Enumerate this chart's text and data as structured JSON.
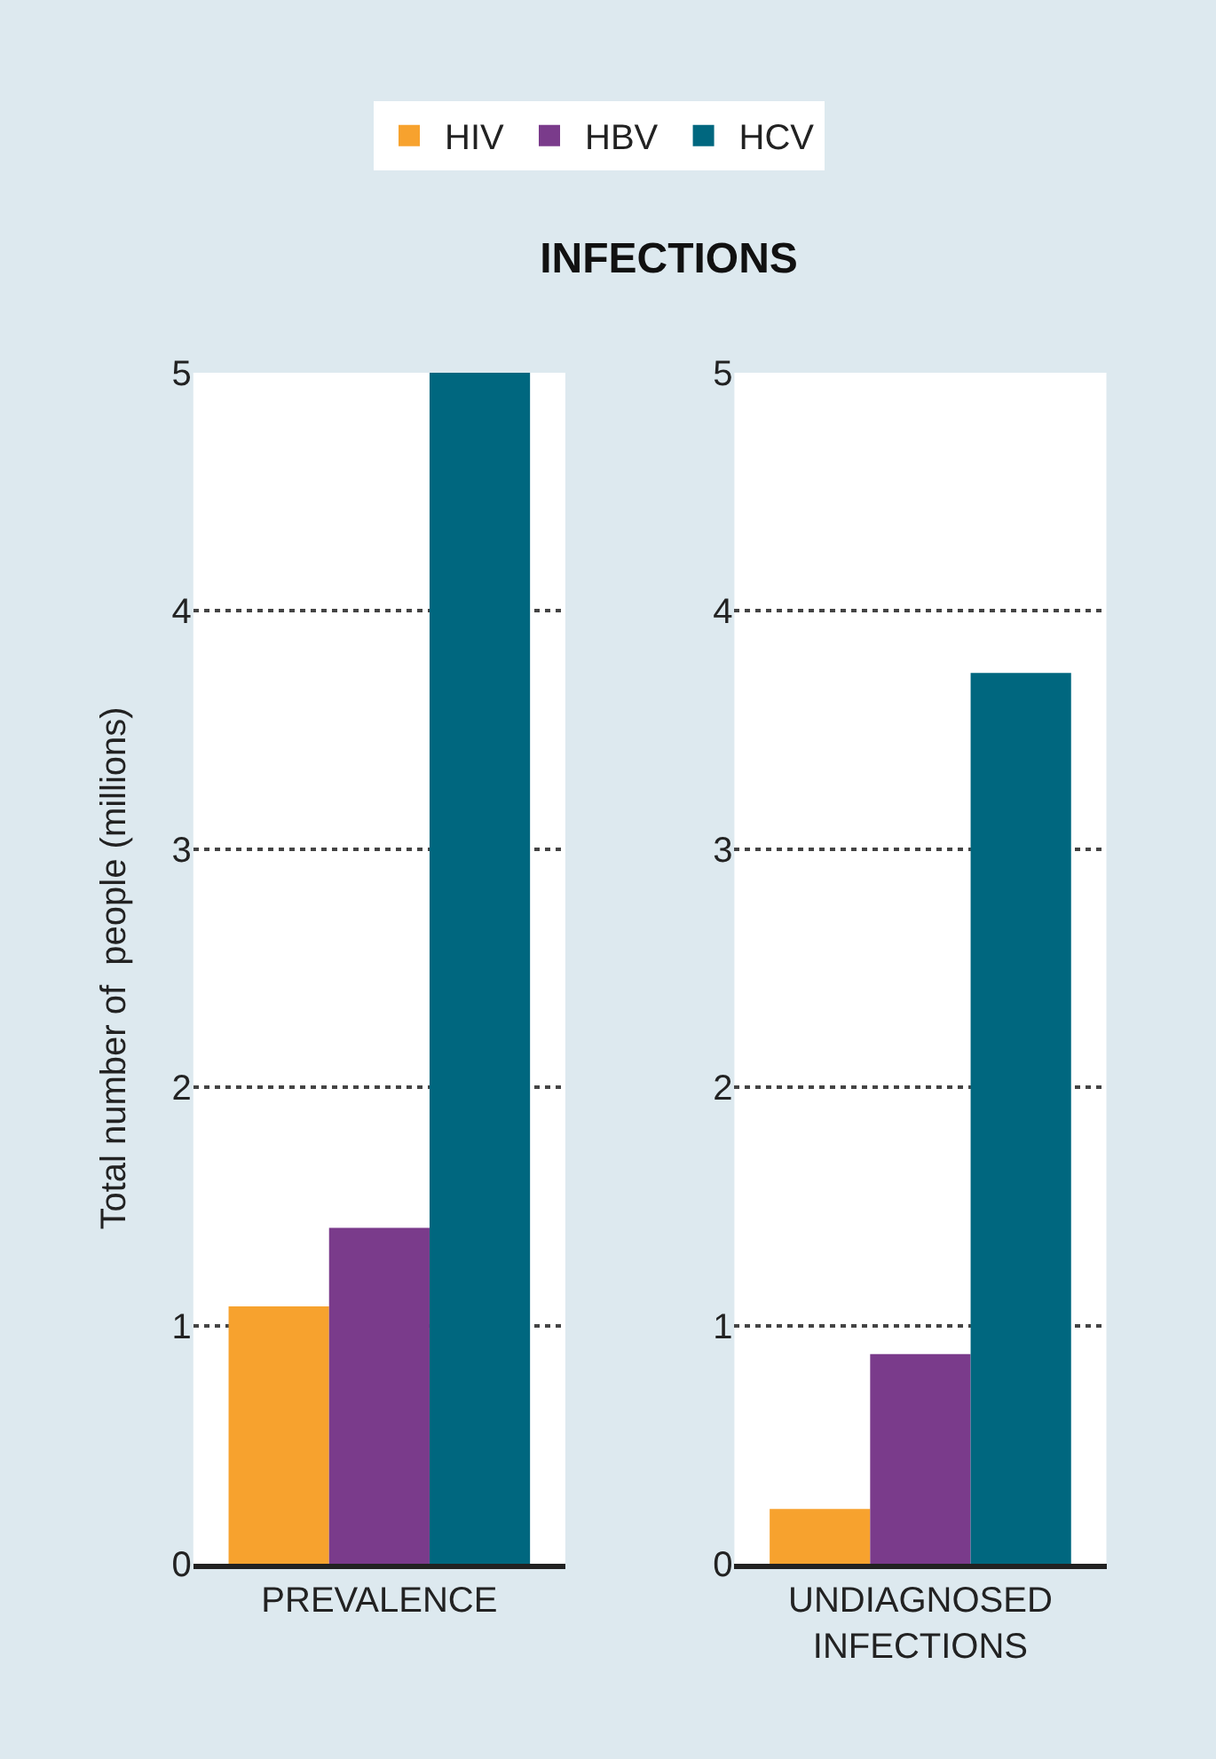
{
  "chart_data": [
    {
      "type": "bar",
      "title": "INFECTIONS",
      "ylabel": "Total number of  people (millions)",
      "categories": [
        "PREVALENCE"
      ],
      "ylim": [
        0,
        5
      ],
      "yticks": [
        0,
        1,
        2,
        3,
        4,
        5
      ],
      "grid": "y",
      "legend": "top",
      "series": [
        {
          "name": "HIV",
          "color": "#f7a22e",
          "values": [
            1.08
          ]
        },
        {
          "name": "HBV",
          "color": "#7a3b8b",
          "values": [
            1.41
          ]
        },
        {
          "name": "HCV",
          "color": "#00677f",
          "values": [
            5.0
          ]
        }
      ]
    },
    {
      "type": "bar",
      "categories": [
        "UNDIAGNOSED INFECTIONS"
      ],
      "ylim": [
        0,
        5
      ],
      "yticks": [
        0,
        1,
        2,
        3,
        4,
        5
      ],
      "grid": "y",
      "series": [
        {
          "color": "#f7a22e",
          "values": [
            0.23
          ]
        },
        {
          "color": "#7a3b8b",
          "values": [
            0.88
          ]
        },
        {
          "color": "#00677f",
          "values": [
            3.74
          ]
        }
      ]
    }
  ]
}
